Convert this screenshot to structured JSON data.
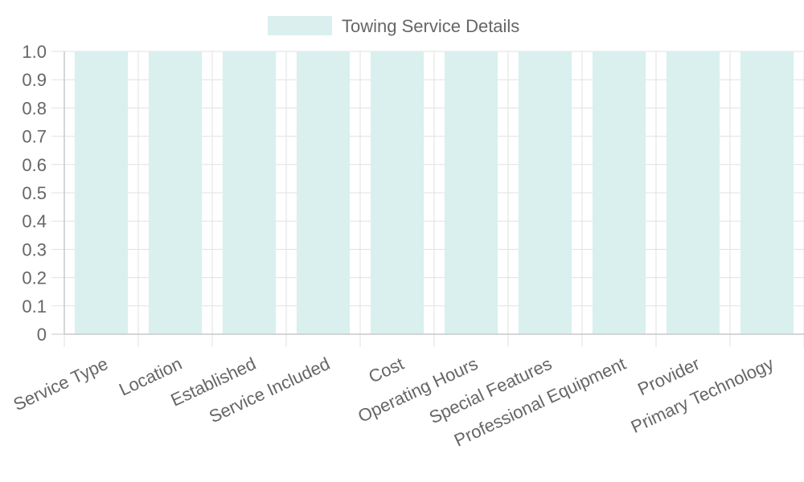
{
  "colors": {
    "bar_fill": "#d9f0ee",
    "grid": "#e1e1e1",
    "axis": "#c8c8c8",
    "text": "#666666"
  },
  "legend": {
    "label": "Towing Service Details"
  },
  "chart_data": {
    "type": "bar",
    "categories": [
      "Service Type",
      "Location",
      "Established",
      "Service Included",
      "Cost",
      "Operating Hours",
      "Special Features",
      "Professional Equipment",
      "Provider",
      "Primary Technology"
    ],
    "series": [
      {
        "name": "Towing Service Details",
        "values": [
          1,
          1,
          1,
          1,
          1,
          1,
          1,
          1,
          1,
          1
        ]
      }
    ],
    "ylim": [
      0,
      1
    ],
    "yticks": [
      "0",
      "0.1",
      "0.2",
      "0.3",
      "0.4",
      "0.5",
      "0.6",
      "0.7",
      "0.8",
      "0.9",
      "1.0"
    ],
    "title": "",
    "xlabel": "",
    "ylabel": "",
    "grid": true,
    "legend_position": "top-center"
  }
}
